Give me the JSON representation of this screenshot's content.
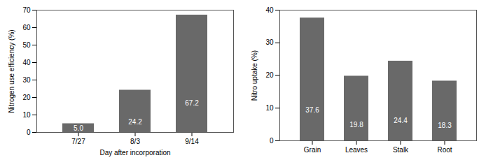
{
  "chart_data": [
    {
      "type": "bar",
      "categories": [
        "7/27",
        "8/3",
        "9/14"
      ],
      "values": [
        5.0,
        24.2,
        67.2
      ],
      "value_labels": [
        "5.0",
        "24.2",
        "67.2"
      ],
      "xlabel": "Day after incorporation",
      "ylabel": "Nitrogen use efficiency (%)",
      "ylim": [
        0,
        70
      ],
      "yticks": [
        0,
        10,
        20,
        30,
        40,
        50,
        60,
        70
      ],
      "color": "#696969",
      "grid": false,
      "data_labels": true
    },
    {
      "type": "bar",
      "categories": [
        "Grain",
        "Leaves",
        "Stalk",
        "Root"
      ],
      "values": [
        37.6,
        19.8,
        24.4,
        18.3
      ],
      "ylabel": "Nitro uptake (%)",
      "ylim": [
        0,
        40
      ],
      "yticks": [
        0,
        10,
        20,
        30,
        40
      ],
      "color": "#696969",
      "grid": false,
      "data_labels": true
    }
  ]
}
